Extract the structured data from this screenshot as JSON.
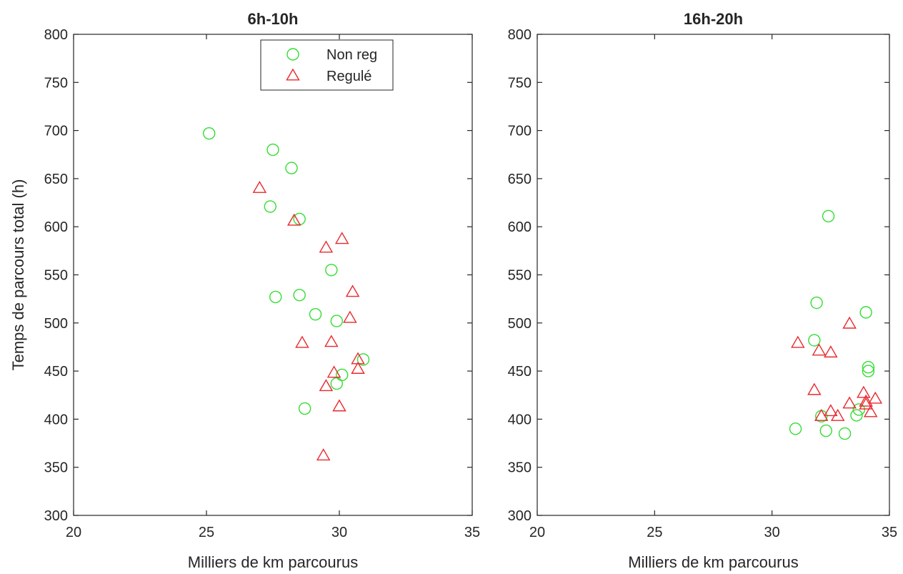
{
  "chart_data": [
    {
      "type": "scatter",
      "title": "6h-10h",
      "xlabel": "Milliers de km parcourus",
      "ylabel": "Temps de parcours total (h)",
      "xlim": [
        20,
        35
      ],
      "ylim": [
        300,
        800
      ],
      "xticks": [
        20,
        25,
        30,
        35
      ],
      "yticks": [
        300,
        350,
        400,
        450,
        500,
        550,
        600,
        650,
        700,
        750,
        800
      ],
      "grid": false,
      "legend": "top-right",
      "series": [
        {
          "name": "Non reg",
          "marker": "circle",
          "color": "#33dd33",
          "points": [
            [
              25.1,
              697
            ],
            [
              27.5,
              680
            ],
            [
              28.2,
              661
            ],
            [
              27.4,
              621
            ],
            [
              28.5,
              608
            ],
            [
              29.7,
              555
            ],
            [
              27.6,
              527
            ],
            [
              28.5,
              529
            ],
            [
              29.1,
              509
            ],
            [
              29.9,
              502
            ],
            [
              30.9,
              462
            ],
            [
              30.1,
              446
            ],
            [
              29.9,
              437
            ],
            [
              28.7,
              411
            ]
          ]
        },
        {
          "name": "Regulé",
          "marker": "triangle",
          "color": "#e8292f",
          "points": [
            [
              27.0,
              640
            ],
            [
              28.3,
              606
            ],
            [
              30.1,
              587
            ],
            [
              29.5,
              578
            ],
            [
              30.5,
              532
            ],
            [
              30.4,
              505
            ],
            [
              28.6,
              479
            ],
            [
              29.7,
              480
            ],
            [
              30.7,
              462
            ],
            [
              30.7,
              452
            ],
            [
              29.8,
              448
            ],
            [
              29.5,
              434
            ],
            [
              30.0,
              413
            ],
            [
              29.4,
              362
            ]
          ]
        }
      ]
    },
    {
      "type": "scatter",
      "title": "16h-20h",
      "xlabel": "Milliers de km parcourus",
      "ylabel": "",
      "xlim": [
        20,
        35
      ],
      "ylim": [
        300,
        800
      ],
      "xticks": [
        20,
        25,
        30,
        35
      ],
      "yticks": [
        300,
        350,
        400,
        450,
        500,
        550,
        600,
        650,
        700,
        750,
        800
      ],
      "grid": false,
      "series": [
        {
          "name": "Non reg",
          "marker": "circle",
          "color": "#33dd33",
          "points": [
            [
              32.4,
              611
            ],
            [
              31.9,
              521
            ],
            [
              34.0,
              511
            ],
            [
              31.8,
              482
            ],
            [
              34.1,
              454
            ],
            [
              34.1,
              450
            ],
            [
              32.1,
              403
            ],
            [
              33.7,
              410
            ],
            [
              33.6,
              404
            ],
            [
              31.0,
              390
            ],
            [
              32.3,
              388
            ],
            [
              33.1,
              385
            ]
          ]
        },
        {
          "name": "Regulé",
          "marker": "triangle",
          "color": "#e8292f",
          "points": [
            [
              33.3,
              499
            ],
            [
              31.1,
              479
            ],
            [
              32.0,
              471
            ],
            [
              32.5,
              469
            ],
            [
              31.8,
              430
            ],
            [
              33.9,
              427
            ],
            [
              34.4,
              421
            ],
            [
              33.3,
              416
            ],
            [
              34.0,
              418
            ],
            [
              34.0,
              415
            ],
            [
              32.1,
              403
            ],
            [
              32.5,
              408
            ],
            [
              32.8,
              403
            ],
            [
              34.2,
              407
            ]
          ]
        }
      ]
    }
  ]
}
